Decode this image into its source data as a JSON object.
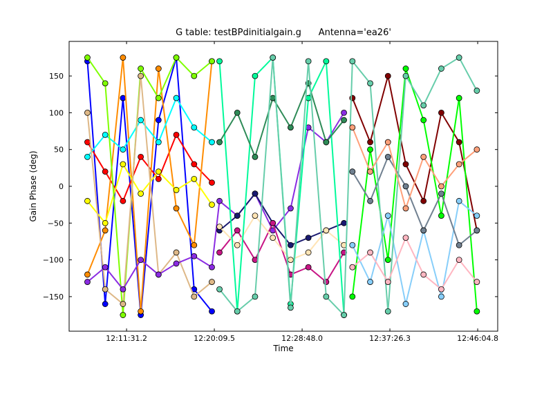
{
  "chart_data": {
    "type": "scatter",
    "title": "G table: testBPdinitialgain.g      Antenna='ea26'",
    "xlabel": "Time",
    "ylabel": "Gain Phase (deg)",
    "xlim": [
      "12:05:52",
      "12:48:03"
    ],
    "ylim": [
      -197,
      197
    ],
    "xticks": [
      "12:11:31.2",
      "12:20:09.5",
      "12:28:48.0",
      "12:37:26.3",
      "12:46:04.8"
    ],
    "yticks": [
      150,
      100,
      50,
      0,
      -50,
      -100,
      -150
    ],
    "grid": false,
    "x": [
      "12:07:40",
      "12:09:25",
      "12:11:10",
      "12:12:55",
      "12:14:40",
      "12:16:25",
      "12:18:10",
      "12:19:55",
      "12:20:40",
      "12:22:25",
      "12:24:10",
      "12:25:55",
      "12:27:40",
      "12:29:25",
      "12:31:10",
      "12:32:55",
      "12:33:45",
      "12:35:30",
      "12:37:15",
      "12:39:00",
      "12:40:45",
      "12:42:30",
      "12:44:15",
      "12:46:00"
    ],
    "series": [
      {
        "color": "#0000ff",
        "values": [
          170,
          -160,
          120,
          -175,
          90,
          175,
          -140,
          -170,
          null,
          null,
          null,
          null,
          null,
          null,
          null,
          null,
          null,
          null,
          null,
          null,
          null,
          null,
          null,
          null
        ]
      },
      {
        "color": "#ff0000",
        "values": [
          60,
          20,
          -20,
          40,
          10,
          70,
          30,
          5,
          null,
          null,
          null,
          null,
          null,
          null,
          null,
          null,
          null,
          null,
          null,
          null,
          null,
          null,
          null,
          null
        ]
      },
      {
        "color": "#ff8c00",
        "values": [
          -120,
          -60,
          175,
          -170,
          160,
          -30,
          -80,
          170,
          null,
          null,
          null,
          null,
          null,
          null,
          null,
          null,
          null,
          null,
          null,
          null,
          null,
          null,
          null,
          null
        ]
      },
      {
        "color": "#ffff00",
        "values": [
          -20,
          -50,
          30,
          -10,
          20,
          -5,
          10,
          -25,
          null,
          null,
          null,
          null,
          null,
          null,
          null,
          null,
          null,
          null,
          null,
          null,
          null,
          null,
          null,
          null
        ]
      },
      {
        "color": "#00ffff",
        "values": [
          40,
          70,
          50,
          90,
          60,
          120,
          80,
          60,
          null,
          null,
          null,
          null,
          null,
          null,
          null,
          null,
          null,
          null,
          null,
          null,
          null,
          null,
          null,
          null
        ]
      },
      {
        "color": "#7fff00",
        "values": [
          175,
          140,
          -175,
          160,
          120,
          175,
          150,
          170,
          null,
          null,
          null,
          null,
          null,
          null,
          null,
          null,
          null,
          null,
          null,
          null,
          null,
          null,
          null,
          null
        ]
      },
      {
        "color": "#deb887",
        "values": [
          100,
          -140,
          -160,
          150,
          -120,
          -90,
          -150,
          -130,
          null,
          null,
          null,
          null,
          null,
          null,
          null,
          null,
          null,
          null,
          null,
          null,
          null,
          null,
          null,
          null
        ]
      },
      {
        "color": "#8a2be2",
        "values": [
          -130,
          -110,
          -140,
          -100,
          -120,
          -105,
          -95,
          -110,
          -20,
          -40,
          -10,
          -60,
          -30,
          80,
          60,
          100,
          null,
          null,
          null,
          null,
          null,
          null,
          null,
          null
        ]
      },
      {
        "color": "#191970",
        "values": [
          null,
          null,
          null,
          null,
          null,
          null,
          null,
          null,
          -60,
          -40,
          -10,
          -50,
          -80,
          -70,
          -60,
          -50,
          null,
          null,
          null,
          null,
          null,
          null,
          null,
          null
        ]
      },
      {
        "color": "#c71585",
        "values": [
          null,
          null,
          null,
          null,
          null,
          null,
          null,
          null,
          -90,
          -60,
          -100,
          -50,
          -120,
          -110,
          -130,
          -90,
          null,
          null,
          null,
          null,
          null,
          null,
          null,
          null
        ]
      },
      {
        "color": "#ffe4b5",
        "values": [
          null,
          null,
          null,
          null,
          null,
          null,
          null,
          null,
          -55,
          -80,
          -40,
          -70,
          -100,
          -90,
          -60,
          -80,
          null,
          null,
          null,
          null,
          null,
          null,
          null,
          null
        ]
      },
      {
        "color": "#00fa9a",
        "values": [
          null,
          null,
          null,
          null,
          null,
          null,
          null,
          null,
          170,
          -170,
          150,
          175,
          -160,
          120,
          170,
          -175,
          null,
          null,
          null,
          null,
          null,
          null,
          null,
          null
        ]
      },
      {
        "color": "#2e8b57",
        "values": [
          null,
          null,
          null,
          null,
          null,
          null,
          null,
          null,
          60,
          100,
          40,
          120,
          80,
          140,
          60,
          90,
          null,
          null,
          null,
          null,
          null,
          null,
          null,
          null
        ]
      },
      {
        "color": "#800000",
        "values": [
          null,
          null,
          null,
          null,
          null,
          null,
          null,
          null,
          null,
          null,
          null,
          null,
          null,
          null,
          null,
          null,
          120,
          60,
          150,
          30,
          -20,
          100,
          60,
          -60
        ]
      },
      {
        "color": "#00ff00",
        "values": [
          null,
          null,
          null,
          null,
          null,
          null,
          null,
          null,
          null,
          null,
          null,
          null,
          null,
          null,
          null,
          null,
          -150,
          50,
          -100,
          160,
          90,
          -40,
          120,
          -170
        ]
      },
      {
        "color": "#87cefa",
        "values": [
          null,
          null,
          null,
          null,
          null,
          null,
          null,
          null,
          null,
          null,
          null,
          null,
          null,
          null,
          null,
          null,
          -80,
          -130,
          -40,
          -160,
          -60,
          -150,
          -20,
          -40
        ]
      },
      {
        "color": "#708090",
        "values": [
          null,
          null,
          null,
          null,
          null,
          null,
          null,
          null,
          null,
          null,
          null,
          null,
          null,
          null,
          null,
          null,
          20,
          -20,
          40,
          0,
          -60,
          -10,
          -80,
          -60
        ]
      },
      {
        "color": "#66cdaa",
        "values": [
          null,
          null,
          null,
          null,
          null,
          null,
          null,
          null,
          -140,
          -170,
          -150,
          175,
          -165,
          170,
          -150,
          -175,
          170,
          140,
          -170,
          150,
          110,
          160,
          175,
          130
        ]
      },
      {
        "color": "#ffb6c1",
        "values": [
          null,
          null,
          null,
          null,
          null,
          null,
          null,
          null,
          null,
          null,
          null,
          null,
          null,
          null,
          null,
          null,
          -110,
          -90,
          -130,
          -70,
          -120,
          -140,
          -100,
          -130
        ]
      },
      {
        "color": "#ffa07a",
        "values": [
          null,
          null,
          null,
          null,
          null,
          null,
          null,
          null,
          null,
          null,
          null,
          null,
          null,
          null,
          null,
          null,
          80,
          20,
          60,
          -30,
          40,
          0,
          30,
          50
        ]
      }
    ]
  }
}
